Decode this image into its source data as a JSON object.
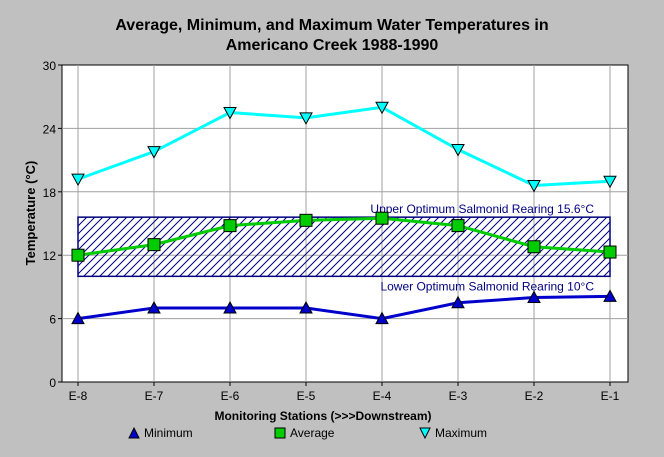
{
  "chart_data": {
    "type": "line",
    "title_line1": "Average, Minimum, and Maximum Water Temperatures in",
    "title_line2": "Americano Creek 1988-1990",
    "xlabel": "Monitoring Stations (>>>Downstream)",
    "ylabel": "Temperature (°C)",
    "categories": [
      "E-8",
      "E-7",
      "E-6",
      "E-5",
      "E-4",
      "E-3",
      "E-2",
      "E-1"
    ],
    "ylim": [
      0,
      30
    ],
    "yticks": [
      0,
      6,
      12,
      18,
      24,
      30
    ],
    "grid": true,
    "legend_position": "bottom",
    "series": [
      {
        "name": "Minimum",
        "values": [
          6.0,
          7.0,
          7.0,
          7.0,
          6.0,
          7.5,
          8.0,
          8.1
        ],
        "color": "#0000cc",
        "marker": "triangle-up"
      },
      {
        "name": "Average",
        "values": [
          12.0,
          13.0,
          14.8,
          15.3,
          15.5,
          14.8,
          12.8,
          12.3
        ],
        "color": "#00cc00",
        "marker": "square"
      },
      {
        "name": "Maximum",
        "values": [
          19.2,
          21.8,
          25.5,
          25.0,
          26.0,
          22.0,
          18.6,
          19.0
        ],
        "color": "#00ffff",
        "marker": "triangle-down"
      }
    ],
    "band": {
      "lower": 10.0,
      "upper": 15.6,
      "color": "#000080"
    },
    "annotations": {
      "upper": "Upper Optimum Salmonid Rearing 15.6°C",
      "lower": "Lower Optimum Salmonid Rearing 10°C"
    }
  }
}
